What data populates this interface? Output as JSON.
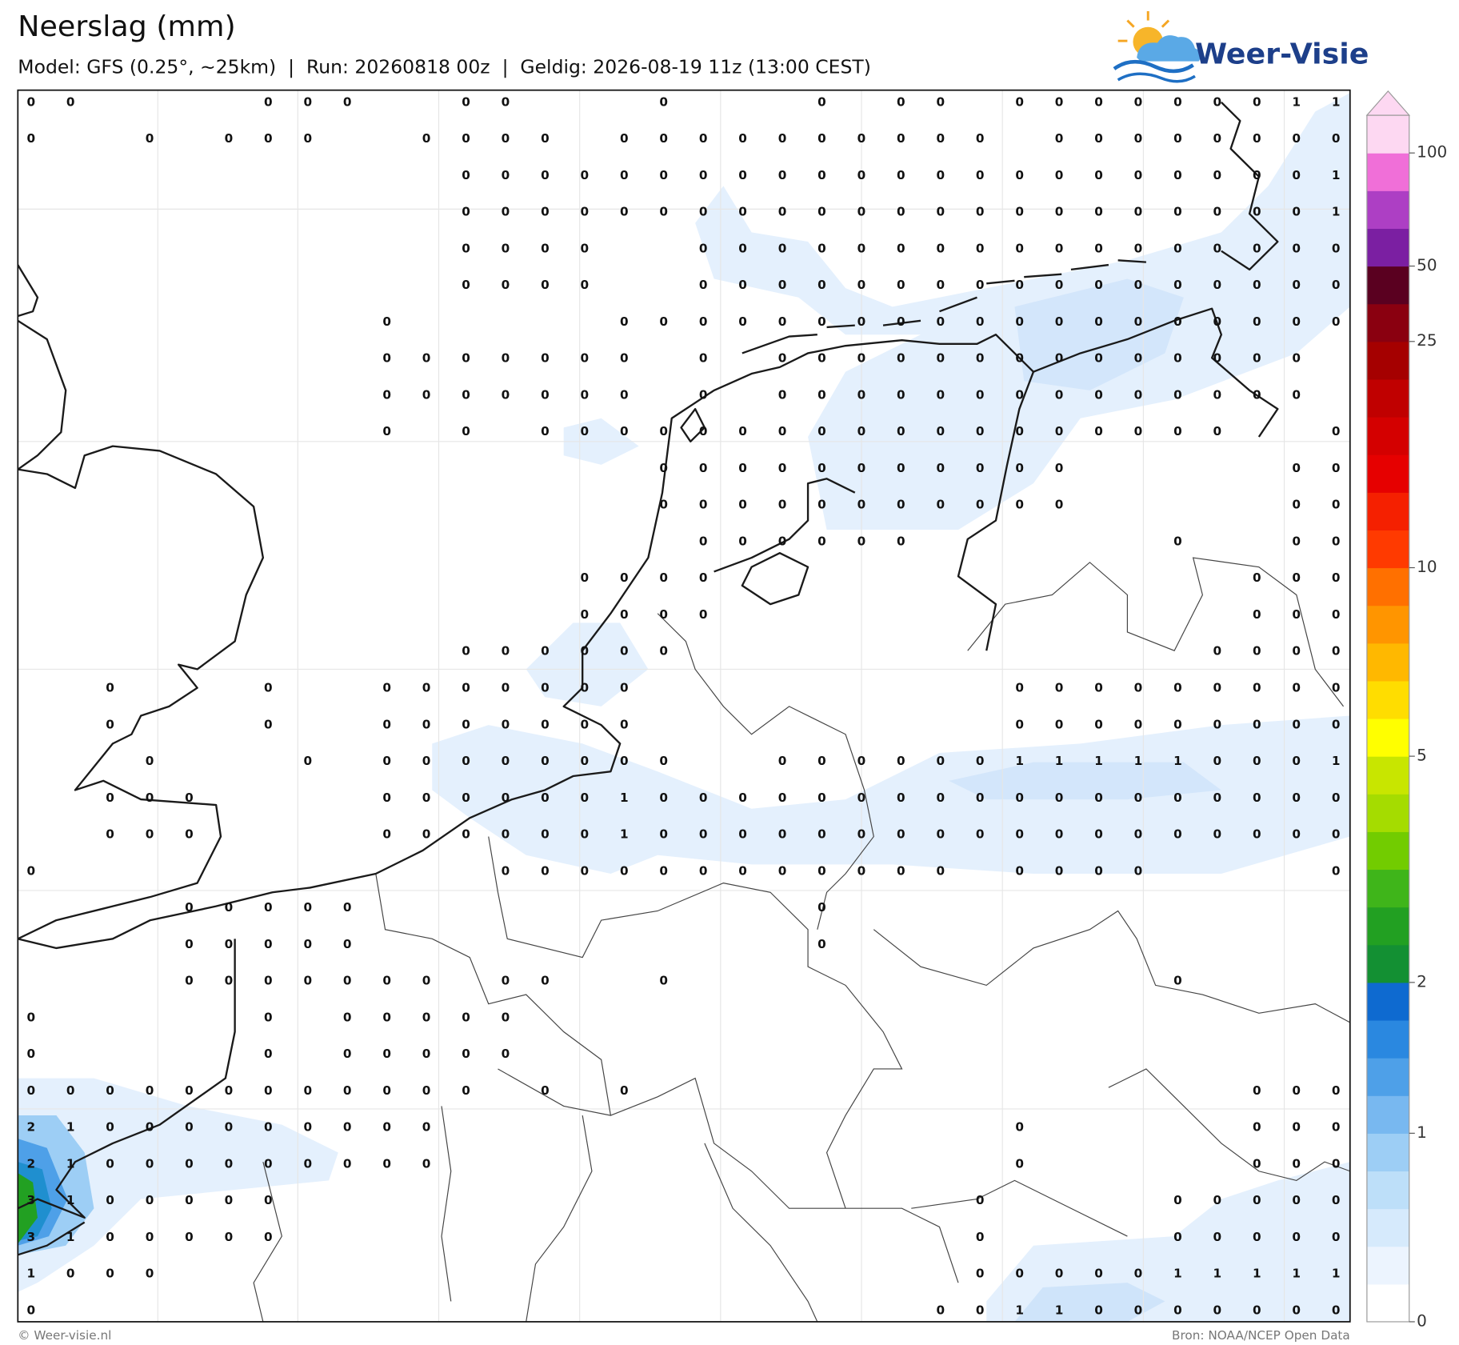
{
  "header": {
    "title": "Neerslag (mm)",
    "subtitle": "Model: GFS (0.25°, ~25km)  |  Run: 20260818 00z  |  Geldig: 2026-08-19 11z (13:00 CEST)",
    "logo": "Weer-Visie"
  },
  "map": {
    "grid": [
      [
        0,
        0,
        null,
        null,
        null,
        null,
        0,
        0,
        0,
        null,
        null,
        0,
        0,
        null,
        null,
        null,
        0,
        null,
        null,
        null,
        0,
        null,
        0,
        0,
        null,
        0,
        0,
        0,
        0,
        0,
        0,
        0,
        1,
        1
      ],
      [
        0,
        null,
        null,
        0,
        null,
        0,
        0,
        0,
        null,
        null,
        0,
        0,
        0,
        0,
        null,
        0,
        0,
        0,
        0,
        0,
        0,
        0,
        0,
        0,
        0,
        null,
        0,
        0,
        0,
        0,
        0,
        0,
        0,
        0
      ],
      [
        null,
        null,
        null,
        null,
        null,
        null,
        null,
        null,
        null,
        null,
        null,
        0,
        0,
        0,
        0,
        0,
        0,
        0,
        0,
        0,
        0,
        0,
        0,
        0,
        0,
        0,
        0,
        0,
        0,
        0,
        0,
        0,
        0,
        1
      ],
      [
        null,
        null,
        null,
        null,
        null,
        null,
        null,
        null,
        null,
        null,
        null,
        0,
        0,
        0,
        0,
        0,
        0,
        0,
        0,
        0,
        0,
        0,
        0,
        0,
        0,
        0,
        0,
        0,
        0,
        0,
        0,
        0,
        0,
        1
      ],
      [
        null,
        null,
        null,
        null,
        null,
        null,
        null,
        null,
        null,
        null,
        null,
        0,
        0,
        0,
        0,
        null,
        null,
        0,
        0,
        0,
        0,
        0,
        0,
        0,
        0,
        0,
        0,
        0,
        0,
        0,
        0,
        0,
        0,
        0
      ],
      [
        null,
        null,
        null,
        null,
        null,
        null,
        null,
        null,
        null,
        null,
        null,
        0,
        0,
        0,
        0,
        null,
        null,
        0,
        0,
        0,
        0,
        0,
        0,
        0,
        0,
        0,
        0,
        0,
        0,
        0,
        0,
        0,
        0,
        0
      ],
      [
        null,
        null,
        null,
        null,
        null,
        null,
        null,
        null,
        null,
        0,
        null,
        null,
        null,
        null,
        null,
        0,
        0,
        0,
        0,
        0,
        0,
        0,
        0,
        0,
        0,
        0,
        0,
        0,
        0,
        0,
        0,
        0,
        0,
        0
      ],
      [
        null,
        null,
        null,
        null,
        null,
        null,
        null,
        null,
        null,
        0,
        0,
        0,
        0,
        0,
        0,
        0,
        null,
        0,
        null,
        0,
        0,
        0,
        0,
        0,
        0,
        0,
        0,
        0,
        0,
        0,
        0,
        0,
        0,
        null
      ],
      [
        null,
        null,
        null,
        null,
        null,
        null,
        null,
        null,
        null,
        0,
        0,
        0,
        0,
        0,
        0,
        0,
        null,
        0,
        null,
        0,
        0,
        0,
        0,
        0,
        0,
        0,
        0,
        0,
        0,
        0,
        0,
        0,
        0,
        null
      ],
      [
        null,
        null,
        null,
        null,
        null,
        null,
        null,
        null,
        null,
        0,
        null,
        0,
        null,
        0,
        0,
        0,
        0,
        0,
        0,
        0,
        0,
        0,
        0,
        0,
        0,
        0,
        0,
        0,
        0,
        0,
        0,
        null,
        null,
        0
      ],
      [
        null,
        null,
        null,
        null,
        null,
        null,
        null,
        null,
        null,
        null,
        null,
        null,
        null,
        null,
        null,
        null,
        0,
        0,
        0,
        0,
        0,
        0,
        0,
        0,
        0,
        0,
        0,
        null,
        null,
        null,
        null,
        null,
        0,
        0
      ],
      [
        null,
        null,
        null,
        null,
        null,
        null,
        null,
        null,
        null,
        null,
        null,
        null,
        null,
        null,
        null,
        null,
        0,
        0,
        0,
        0,
        0,
        0,
        0,
        0,
        0,
        0,
        0,
        null,
        null,
        null,
        null,
        null,
        0,
        0
      ],
      [
        null,
        null,
        null,
        null,
        null,
        null,
        null,
        null,
        null,
        null,
        null,
        null,
        null,
        null,
        null,
        null,
        null,
        0,
        0,
        0,
        0,
        0,
        0,
        null,
        null,
        null,
        null,
        null,
        null,
        0,
        null,
        null,
        0,
        0
      ],
      [
        null,
        null,
        null,
        null,
        null,
        null,
        null,
        null,
        null,
        null,
        null,
        null,
        null,
        null,
        0,
        0,
        0,
        0,
        null,
        null,
        null,
        null,
        null,
        null,
        null,
        null,
        null,
        null,
        null,
        null,
        null,
        0,
        0,
        0
      ],
      [
        null,
        null,
        null,
        null,
        null,
        null,
        null,
        null,
        null,
        null,
        null,
        null,
        null,
        null,
        0,
        0,
        0,
        0,
        null,
        null,
        null,
        null,
        null,
        null,
        null,
        null,
        null,
        null,
        null,
        null,
        null,
        0,
        0,
        0
      ],
      [
        null,
        null,
        null,
        null,
        null,
        null,
        null,
        null,
        null,
        null,
        null,
        0,
        0,
        0,
        0,
        0,
        0,
        null,
        null,
        null,
        null,
        null,
        null,
        null,
        null,
        null,
        null,
        null,
        null,
        null,
        0,
        0,
        0,
        0
      ],
      [
        null,
        null,
        0,
        null,
        null,
        null,
        0,
        null,
        null,
        0,
        0,
        0,
        0,
        0,
        0,
        0,
        null,
        null,
        null,
        null,
        null,
        null,
        null,
        null,
        null,
        0,
        0,
        0,
        0,
        0,
        0,
        0,
        0,
        0
      ],
      [
        null,
        null,
        0,
        null,
        null,
        null,
        0,
        null,
        null,
        0,
        0,
        0,
        0,
        0,
        0,
        0,
        null,
        null,
        null,
        null,
        null,
        null,
        null,
        null,
        null,
        0,
        0,
        0,
        0,
        0,
        0,
        0,
        0,
        0
      ],
      [
        null,
        null,
        null,
        0,
        null,
        null,
        null,
        0,
        null,
        0,
        0,
        0,
        0,
        0,
        0,
        0,
        0,
        null,
        null,
        0,
        0,
        0,
        0,
        0,
        0,
        1,
        1,
        1,
        1,
        1,
        0,
        0,
        0,
        1
      ],
      [
        null,
        null,
        0,
        0,
        0,
        null,
        null,
        null,
        null,
        0,
        0,
        0,
        0,
        0,
        0,
        1,
        0,
        0,
        0,
        0,
        0,
        0,
        0,
        0,
        0,
        0,
        0,
        0,
        0,
        0,
        0,
        0,
        0,
        0
      ],
      [
        null,
        null,
        0,
        0,
        0,
        null,
        null,
        null,
        null,
        0,
        0,
        0,
        0,
        0,
        0,
        1,
        0,
        0,
        0,
        0,
        0,
        0,
        0,
        0,
        0,
        0,
        0,
        0,
        0,
        0,
        0,
        0,
        0,
        0
      ],
      [
        0,
        null,
        null,
        null,
        null,
        null,
        null,
        null,
        null,
        null,
        null,
        null,
        0,
        0,
        0,
        0,
        0,
        0,
        0,
        0,
        0,
        0,
        0,
        0,
        null,
        0,
        0,
        0,
        0,
        null,
        null,
        null,
        null,
        0
      ],
      [
        null,
        null,
        null,
        null,
        0,
        0,
        0,
        0,
        0,
        null,
        null,
        null,
        null,
        null,
        null,
        null,
        null,
        null,
        null,
        null,
        0,
        null,
        null,
        null,
        null,
        null,
        null,
        null,
        null,
        null,
        null,
        null,
        null,
        null
      ],
      [
        null,
        null,
        null,
        null,
        0,
        0,
        0,
        0,
        0,
        null,
        null,
        null,
        null,
        null,
        null,
        null,
        null,
        null,
        null,
        null,
        0,
        null,
        null,
        null,
        null,
        null,
        null,
        null,
        null,
        null,
        null,
        null,
        null,
        null
      ],
      [
        null,
        null,
        null,
        null,
        0,
        0,
        0,
        0,
        0,
        0,
        0,
        null,
        0,
        0,
        null,
        null,
        0,
        null,
        null,
        null,
        null,
        null,
        null,
        null,
        null,
        null,
        null,
        null,
        null,
        0,
        null,
        null,
        null,
        null
      ],
      [
        0,
        null,
        null,
        null,
        null,
        null,
        0,
        null,
        0,
        0,
        0,
        0,
        0,
        null,
        null,
        null,
        null,
        null,
        null,
        null,
        null,
        null,
        null,
        null,
        null,
        null,
        null,
        null,
        null,
        null,
        null,
        null,
        null,
        null
      ],
      [
        0,
        null,
        null,
        null,
        null,
        null,
        0,
        null,
        0,
        0,
        0,
        0,
        0,
        null,
        null,
        null,
        null,
        null,
        null,
        null,
        null,
        null,
        null,
        null,
        null,
        null,
        null,
        null,
        null,
        null,
        null,
        null,
        null,
        null
      ],
      [
        0,
        0,
        0,
        0,
        0,
        0,
        0,
        0,
        0,
        0,
        0,
        0,
        null,
        0,
        null,
        0,
        null,
        null,
        null,
        null,
        null,
        null,
        null,
        null,
        null,
        null,
        null,
        null,
        null,
        null,
        null,
        0,
        0,
        0
      ],
      [
        2,
        1,
        0,
        0,
        0,
        0,
        0,
        0,
        0,
        0,
        0,
        null,
        null,
        null,
        null,
        null,
        null,
        null,
        null,
        null,
        null,
        null,
        null,
        null,
        null,
        0,
        null,
        null,
        null,
        null,
        null,
        0,
        0,
        0
      ],
      [
        2,
        1,
        0,
        0,
        0,
        0,
        0,
        0,
        0,
        0,
        0,
        null,
        null,
        null,
        null,
        null,
        null,
        null,
        null,
        null,
        null,
        null,
        null,
        null,
        null,
        0,
        null,
        null,
        null,
        null,
        null,
        0,
        0,
        0
      ],
      [
        3,
        1,
        0,
        0,
        0,
        0,
        0,
        null,
        null,
        null,
        null,
        null,
        null,
        null,
        null,
        null,
        null,
        null,
        null,
        null,
        null,
        null,
        null,
        null,
        0,
        null,
        null,
        null,
        null,
        0,
        0,
        0,
        0,
        0
      ],
      [
        3,
        1,
        0,
        0,
        0,
        0,
        0,
        null,
        null,
        null,
        null,
        null,
        null,
        null,
        null,
        null,
        null,
        null,
        null,
        null,
        null,
        null,
        null,
        null,
        0,
        null,
        null,
        null,
        null,
        0,
        0,
        0,
        0,
        0
      ],
      [
        1,
        0,
        0,
        0,
        null,
        null,
        null,
        null,
        null,
        null,
        null,
        null,
        null,
        null,
        null,
        null,
        null,
        null,
        null,
        null,
        null,
        null,
        null,
        null,
        0,
        0,
        0,
        0,
        0,
        1,
        1,
        1,
        1,
        1
      ],
      [
        0,
        null,
        null,
        null,
        null,
        null,
        null,
        null,
        null,
        null,
        null,
        null,
        null,
        null,
        null,
        null,
        null,
        null,
        null,
        null,
        null,
        null,
        null,
        0,
        0,
        1,
        1,
        0,
        0,
        0,
        0,
        0,
        0,
        0
      ]
    ]
  },
  "colorbar": {
    "colors": [
      "#ffffff",
      "#ecf4fe",
      "#d6eafc",
      "#bddff9",
      "#9dcef5",
      "#78b8f0",
      "#4ea0e8",
      "#2a88e0",
      "#0e6ad0",
      "#139033",
      "#22a022",
      "#3fb51a",
      "#72cc00",
      "#a5dc00",
      "#c8e600",
      "#ffff00",
      "#ffdd00",
      "#ffb800",
      "#ff9500",
      "#ff7000",
      "#ff3a00",
      "#f52000",
      "#e60000",
      "#d40000",
      "#c00000",
      "#a50000",
      "#8a0010",
      "#5a0020",
      "#7b1fa2",
      "#ad3fc4",
      "#f06fd8",
      "#fdd8f2"
    ],
    "ticks": [
      0,
      1,
      2,
      5,
      10,
      25,
      50,
      100
    ]
  },
  "footer": {
    "credit": "© Weer-visie.nl",
    "source": "Bron: NOAA/NCEP Open Data"
  }
}
